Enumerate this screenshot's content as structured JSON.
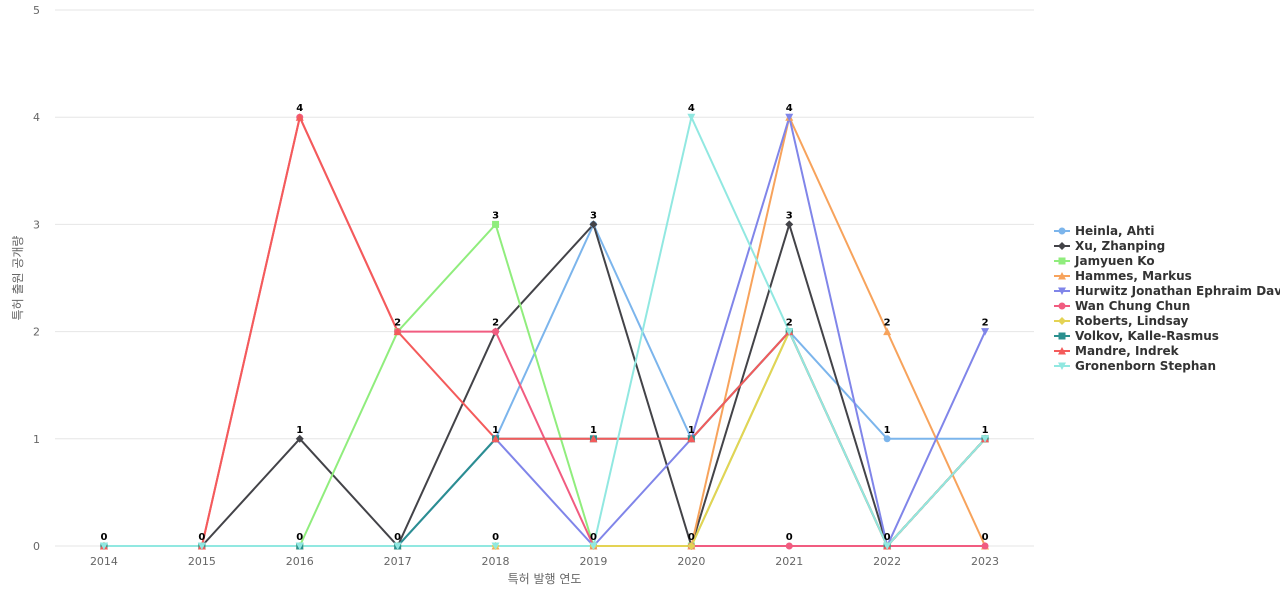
{
  "chart_data": {
    "type": "line",
    "title": "",
    "xlabel": "특허 발행 연도",
    "ylabel": "특허 출원 공개량",
    "ylim": [
      0,
      5
    ],
    "y_ticks": [
      "0",
      "1",
      "2",
      "3",
      "4",
      "5"
    ],
    "categories": [
      "2014",
      "2015",
      "2016",
      "2017",
      "2018",
      "2019",
      "2020",
      "2021",
      "2022",
      "2023"
    ],
    "grid": true,
    "legend_position": "right",
    "series": [
      {
        "name": "Heinla, Ahti",
        "color": "#7cb5ec",
        "marker": "circle",
        "values": [
          0,
          0,
          0,
          0,
          1,
          3,
          1,
          2,
          1,
          1
        ]
      },
      {
        "name": "Xu, Zhanping",
        "color": "#434348",
        "marker": "diamond",
        "values": [
          0,
          0,
          1,
          0,
          2,
          3,
          0,
          3,
          0,
          1
        ]
      },
      {
        "name": "Jamyuen Ko",
        "color": "#90ed7d",
        "marker": "square",
        "values": [
          0,
          0,
          0,
          2,
          3,
          0,
          0,
          2,
          0,
          1
        ]
      },
      {
        "name": "Hammes, Markus",
        "color": "#f7a35c",
        "marker": "triangle",
        "values": [
          0,
          0,
          0,
          0,
          0,
          0,
          0,
          4,
          2,
          0
        ]
      },
      {
        "name": "Hurwitz Jonathan Ephraim David",
        "color": "#8085e9",
        "marker": "triangle-down",
        "values": [
          0,
          0,
          0,
          0,
          1,
          0,
          1,
          4,
          0,
          2
        ]
      },
      {
        "name": "Wan Chung Chun",
        "color": "#f15c80",
        "marker": "circle",
        "values": [
          0,
          0,
          4,
          2,
          2,
          0,
          0,
          0,
          0,
          0
        ]
      },
      {
        "name": "Roberts, Lindsay",
        "color": "#e4d354",
        "marker": "diamond",
        "values": [
          0,
          0,
          0,
          0,
          0,
          0,
          0,
          2,
          0,
          1
        ]
      },
      {
        "name": "Volkov, Kalle-Rasmus",
        "color": "#2b908f",
        "marker": "square",
        "values": [
          0,
          0,
          0,
          0,
          1,
          1,
          1,
          2,
          0,
          1
        ]
      },
      {
        "name": "Mandre, Indrek",
        "color": "#f45b5b",
        "marker": "triangle",
        "values": [
          0,
          0,
          4,
          2,
          1,
          1,
          1,
          2,
          0,
          1
        ]
      },
      {
        "name": "Gronenborn Stephan",
        "color": "#91e8e1",
        "marker": "triangle-down",
        "values": [
          0,
          0,
          0,
          0,
          0,
          0,
          4,
          2,
          0,
          1
        ]
      }
    ],
    "data_labels": [
      {
        "x": "2014",
        "y": 0,
        "text": "0"
      },
      {
        "x": "2015",
        "y": 0,
        "text": "0"
      },
      {
        "x": "2016",
        "y": 4,
        "text": "4"
      },
      {
        "x": "2016",
        "y": 1,
        "text": "1"
      },
      {
        "x": "2016",
        "y": 0,
        "text": "0"
      },
      {
        "x": "2017",
        "y": 2,
        "text": "2"
      },
      {
        "x": "2017",
        "y": 0,
        "text": "0"
      },
      {
        "x": "2018",
        "y": 3,
        "text": "3"
      },
      {
        "x": "2018",
        "y": 2,
        "text": "2"
      },
      {
        "x": "2018",
        "y": 1,
        "text": "1"
      },
      {
        "x": "2018",
        "y": 0,
        "text": "0"
      },
      {
        "x": "2019",
        "y": 3,
        "text": "3"
      },
      {
        "x": "2019",
        "y": 1,
        "text": "1"
      },
      {
        "x": "2019",
        "y": 0,
        "text": "0"
      },
      {
        "x": "2020",
        "y": 4,
        "text": "4"
      },
      {
        "x": "2020",
        "y": 1,
        "text": "1"
      },
      {
        "x": "2020",
        "y": 0,
        "text": "0"
      },
      {
        "x": "2021",
        "y": 4,
        "text": "4"
      },
      {
        "x": "2021",
        "y": 3,
        "text": "3"
      },
      {
        "x": "2021",
        "y": 2,
        "text": "2"
      },
      {
        "x": "2021",
        "y": 0,
        "text": "0"
      },
      {
        "x": "2022",
        "y": 2,
        "text": "2"
      },
      {
        "x": "2022",
        "y": 1,
        "text": "1"
      },
      {
        "x": "2022",
        "y": 0,
        "text": "0"
      },
      {
        "x": "2023",
        "y": 2,
        "text": "2"
      },
      {
        "x": "2023",
        "y": 1,
        "text": "1"
      },
      {
        "x": "2023",
        "y": 0,
        "text": "0"
      }
    ]
  }
}
